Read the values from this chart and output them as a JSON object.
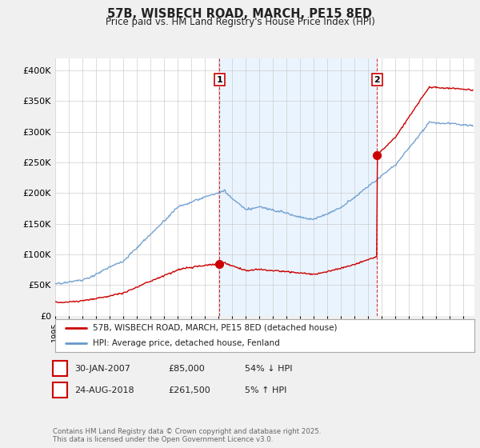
{
  "title": "57B, WISBECH ROAD, MARCH, PE15 8ED",
  "subtitle": "Price paid vs. HM Land Registry's House Price Index (HPI)",
  "ylim": [
    0,
    420000
  ],
  "yticks": [
    0,
    50000,
    100000,
    150000,
    200000,
    250000,
    300000,
    350000,
    400000
  ],
  "ytick_labels": [
    "£0",
    "£50K",
    "£100K",
    "£150K",
    "£200K",
    "£250K",
    "£300K",
    "£350K",
    "£400K"
  ],
  "xlim_start": 1995.0,
  "xlim_end": 2025.8,
  "background_color": "#f0f0f0",
  "plot_bg_color": "#ffffff",
  "shade_color": "#ddeeff",
  "grid_color": "#cccccc",
  "red_color": "#cc0000",
  "blue_color": "#6699cc",
  "sale1_x": 2007.08,
  "sale1_y": 85000,
  "sale1_label": "1",
  "sale2_x": 2018.65,
  "sale2_y": 261500,
  "sale2_label": "2",
  "legend_entry1": "57B, WISBECH ROAD, MARCH, PE15 8ED (detached house)",
  "legend_entry2": "HPI: Average price, detached house, Fenland",
  "table_row1": [
    "1",
    "30-JAN-2007",
    "£85,000",
    "54% ↓ HPI"
  ],
  "table_row2": [
    "2",
    "24-AUG-2018",
    "£261,500",
    "5% ↑ HPI"
  ],
  "footer": "Contains HM Land Registry data © Crown copyright and database right 2025.\nThis data is licensed under the Open Government Licence v3.0."
}
